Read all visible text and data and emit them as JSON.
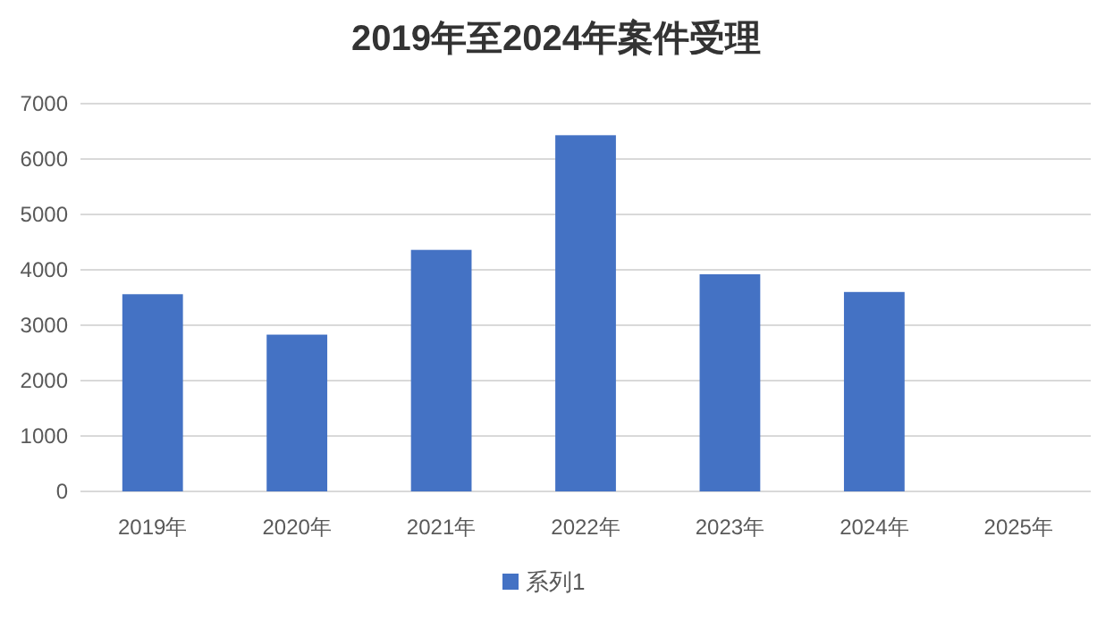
{
  "chart_data": {
    "type": "bar",
    "title": "2019年至2024年案件受理",
    "categories": [
      "2019年",
      "2020年",
      "2021年",
      "2022年",
      "2023年",
      "2024年",
      "2025年"
    ],
    "series": [
      {
        "name": "系列1",
        "color": "#4472c4",
        "values": [
          3560,
          2830,
          4360,
          6430,
          3920,
          3600,
          null
        ]
      }
    ],
    "ylim": [
      0,
      7000
    ],
    "yticks": [
      0,
      1000,
      2000,
      3000,
      4000,
      5000,
      6000,
      7000
    ],
    "grid": "y",
    "legend": "bottom"
  }
}
